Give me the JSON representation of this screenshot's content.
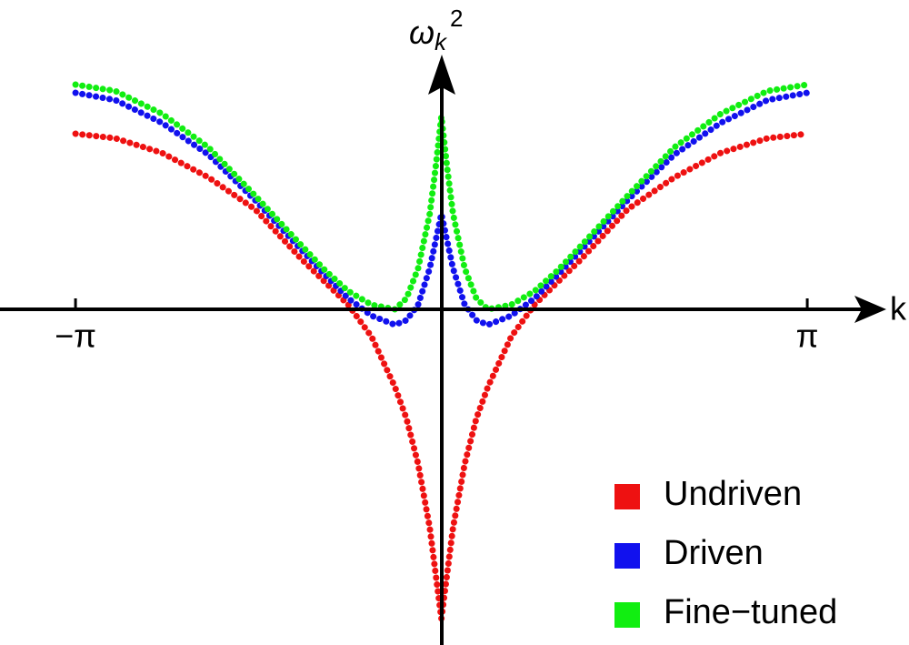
{
  "chart_data": {
    "type": "scatter",
    "xlabel": "k",
    "ylabel": {
      "base": "ω",
      "sub": "k",
      "sup": "2"
    },
    "x": [
      -3.14159,
      -2.8,
      -2.4,
      -2.0,
      -1.6,
      -1.2,
      -1.0,
      -0.8,
      -0.6,
      -0.4,
      -0.3,
      -0.2,
      -0.1,
      -0.05,
      0,
      0.05,
      0.1,
      0.2,
      0.3,
      0.4,
      0.6,
      0.8,
      1.0,
      1.2,
      1.6,
      2.0,
      2.4,
      2.8,
      3.14159
    ],
    "series": [
      {
        "name": "Undriven",
        "color": "#ee1111",
        "values": [
          1.93,
          1.88,
          1.72,
          1.45,
          1.1,
          0.55,
          0.3,
          0.05,
          -0.3,
          -0.85,
          -1.2,
          -1.7,
          -2.4,
          -2.9,
          -3.4,
          -2.9,
          -2.4,
          -1.7,
          -1.2,
          -0.85,
          -0.3,
          0.05,
          0.3,
          0.55,
          1.1,
          1.45,
          1.72,
          1.88,
          1.93
        ]
      },
      {
        "name": "Driven",
        "color": "#1111ee",
        "values": [
          2.38,
          2.3,
          2.05,
          1.7,
          1.2,
          0.65,
          0.38,
          0.12,
          -0.07,
          -0.17,
          -0.12,
          0.05,
          0.45,
          0.75,
          1.05,
          0.75,
          0.45,
          0.05,
          -0.12,
          -0.17,
          -0.07,
          0.12,
          0.38,
          0.65,
          1.2,
          1.7,
          2.05,
          2.3,
          2.38
        ]
      },
      {
        "name": "Fine−tuned",
        "color": "#11ee11",
        "values": [
          2.47,
          2.4,
          2.15,
          1.78,
          1.25,
          0.7,
          0.43,
          0.2,
          0.05,
          0.0,
          0.12,
          0.45,
          1.05,
          1.55,
          2.12,
          1.55,
          1.05,
          0.45,
          0.12,
          0.0,
          0.05,
          0.2,
          0.43,
          0.7,
          1.25,
          1.78,
          2.15,
          2.4,
          2.47
        ]
      }
    ],
    "xlim": [
      -3.79,
      3.82
    ],
    "ylim": [
      -3.65,
      2.8
    ],
    "xticks": [
      {
        "value": -3.14159,
        "label": "−π"
      },
      {
        "value": 3.14159,
        "label": "π"
      }
    ],
    "legend": "lower right"
  }
}
